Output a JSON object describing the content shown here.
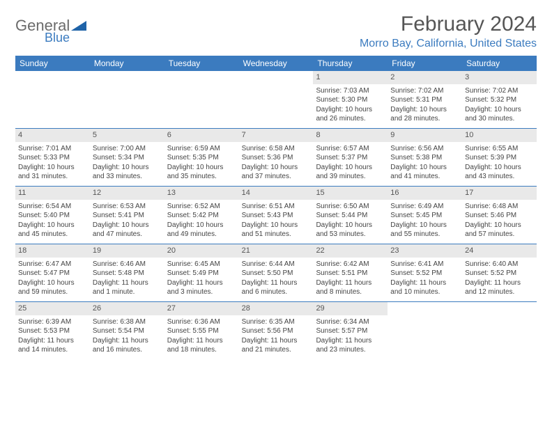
{
  "logo": {
    "text1": "General",
    "text2": "Blue",
    "color1": "#6b6b6b",
    "color2": "#3b7bbf",
    "triangle_color": "#1f63a8"
  },
  "header": {
    "month_title": "February 2024",
    "location": "Morro Bay, California, United States"
  },
  "styling": {
    "header_bg": "#3b7bbf",
    "header_text": "#ffffff",
    "daynum_bg": "#e9e9e9",
    "border_color": "#3b7bbf",
    "body_font_size": 10,
    "title_font_size": 30,
    "location_font_size": 16
  },
  "weekdays": [
    "Sunday",
    "Monday",
    "Tuesday",
    "Wednesday",
    "Thursday",
    "Friday",
    "Saturday"
  ],
  "weeks": [
    [
      null,
      null,
      null,
      null,
      {
        "d": "1",
        "sr": "Sunrise: 7:03 AM",
        "ss": "Sunset: 5:30 PM",
        "dl": "Daylight: 10 hours and 26 minutes."
      },
      {
        "d": "2",
        "sr": "Sunrise: 7:02 AM",
        "ss": "Sunset: 5:31 PM",
        "dl": "Daylight: 10 hours and 28 minutes."
      },
      {
        "d": "3",
        "sr": "Sunrise: 7:02 AM",
        "ss": "Sunset: 5:32 PM",
        "dl": "Daylight: 10 hours and 30 minutes."
      }
    ],
    [
      {
        "d": "4",
        "sr": "Sunrise: 7:01 AM",
        "ss": "Sunset: 5:33 PM",
        "dl": "Daylight: 10 hours and 31 minutes."
      },
      {
        "d": "5",
        "sr": "Sunrise: 7:00 AM",
        "ss": "Sunset: 5:34 PM",
        "dl": "Daylight: 10 hours and 33 minutes."
      },
      {
        "d": "6",
        "sr": "Sunrise: 6:59 AM",
        "ss": "Sunset: 5:35 PM",
        "dl": "Daylight: 10 hours and 35 minutes."
      },
      {
        "d": "7",
        "sr": "Sunrise: 6:58 AM",
        "ss": "Sunset: 5:36 PM",
        "dl": "Daylight: 10 hours and 37 minutes."
      },
      {
        "d": "8",
        "sr": "Sunrise: 6:57 AM",
        "ss": "Sunset: 5:37 PM",
        "dl": "Daylight: 10 hours and 39 minutes."
      },
      {
        "d": "9",
        "sr": "Sunrise: 6:56 AM",
        "ss": "Sunset: 5:38 PM",
        "dl": "Daylight: 10 hours and 41 minutes."
      },
      {
        "d": "10",
        "sr": "Sunrise: 6:55 AM",
        "ss": "Sunset: 5:39 PM",
        "dl": "Daylight: 10 hours and 43 minutes."
      }
    ],
    [
      {
        "d": "11",
        "sr": "Sunrise: 6:54 AM",
        "ss": "Sunset: 5:40 PM",
        "dl": "Daylight: 10 hours and 45 minutes."
      },
      {
        "d": "12",
        "sr": "Sunrise: 6:53 AM",
        "ss": "Sunset: 5:41 PM",
        "dl": "Daylight: 10 hours and 47 minutes."
      },
      {
        "d": "13",
        "sr": "Sunrise: 6:52 AM",
        "ss": "Sunset: 5:42 PM",
        "dl": "Daylight: 10 hours and 49 minutes."
      },
      {
        "d": "14",
        "sr": "Sunrise: 6:51 AM",
        "ss": "Sunset: 5:43 PM",
        "dl": "Daylight: 10 hours and 51 minutes."
      },
      {
        "d": "15",
        "sr": "Sunrise: 6:50 AM",
        "ss": "Sunset: 5:44 PM",
        "dl": "Daylight: 10 hours and 53 minutes."
      },
      {
        "d": "16",
        "sr": "Sunrise: 6:49 AM",
        "ss": "Sunset: 5:45 PM",
        "dl": "Daylight: 10 hours and 55 minutes."
      },
      {
        "d": "17",
        "sr": "Sunrise: 6:48 AM",
        "ss": "Sunset: 5:46 PM",
        "dl": "Daylight: 10 hours and 57 minutes."
      }
    ],
    [
      {
        "d": "18",
        "sr": "Sunrise: 6:47 AM",
        "ss": "Sunset: 5:47 PM",
        "dl": "Daylight: 10 hours and 59 minutes."
      },
      {
        "d": "19",
        "sr": "Sunrise: 6:46 AM",
        "ss": "Sunset: 5:48 PM",
        "dl": "Daylight: 11 hours and 1 minute."
      },
      {
        "d": "20",
        "sr": "Sunrise: 6:45 AM",
        "ss": "Sunset: 5:49 PM",
        "dl": "Daylight: 11 hours and 3 minutes."
      },
      {
        "d": "21",
        "sr": "Sunrise: 6:44 AM",
        "ss": "Sunset: 5:50 PM",
        "dl": "Daylight: 11 hours and 6 minutes."
      },
      {
        "d": "22",
        "sr": "Sunrise: 6:42 AM",
        "ss": "Sunset: 5:51 PM",
        "dl": "Daylight: 11 hours and 8 minutes."
      },
      {
        "d": "23",
        "sr": "Sunrise: 6:41 AM",
        "ss": "Sunset: 5:52 PM",
        "dl": "Daylight: 11 hours and 10 minutes."
      },
      {
        "d": "24",
        "sr": "Sunrise: 6:40 AM",
        "ss": "Sunset: 5:52 PM",
        "dl": "Daylight: 11 hours and 12 minutes."
      }
    ],
    [
      {
        "d": "25",
        "sr": "Sunrise: 6:39 AM",
        "ss": "Sunset: 5:53 PM",
        "dl": "Daylight: 11 hours and 14 minutes."
      },
      {
        "d": "26",
        "sr": "Sunrise: 6:38 AM",
        "ss": "Sunset: 5:54 PM",
        "dl": "Daylight: 11 hours and 16 minutes."
      },
      {
        "d": "27",
        "sr": "Sunrise: 6:36 AM",
        "ss": "Sunset: 5:55 PM",
        "dl": "Daylight: 11 hours and 18 minutes."
      },
      {
        "d": "28",
        "sr": "Sunrise: 6:35 AM",
        "ss": "Sunset: 5:56 PM",
        "dl": "Daylight: 11 hours and 21 minutes."
      },
      {
        "d": "29",
        "sr": "Sunrise: 6:34 AM",
        "ss": "Sunset: 5:57 PM",
        "dl": "Daylight: 11 hours and 23 minutes."
      },
      null,
      null
    ]
  ]
}
